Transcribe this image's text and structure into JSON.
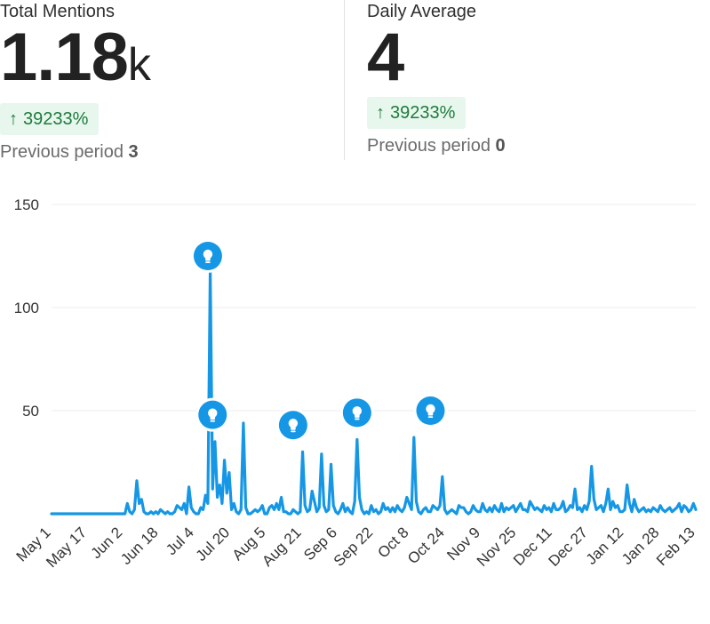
{
  "stats": {
    "total": {
      "label": "Total Mentions",
      "value": "1.18",
      "unit": "k",
      "delta": "39233%",
      "prev_label": "Previous period",
      "prev_value": "3"
    },
    "average": {
      "label": "Daily Average",
      "value": "4",
      "delta": "39233%",
      "prev_label": "Previous period",
      "prev_value": "0"
    }
  },
  "colors": {
    "line": "#1597e5",
    "marker": "#1597e5",
    "delta_bg": "#e8f7ee",
    "delta_text": "#1e7b3a",
    "grid": "#ececec"
  },
  "icons": {
    "delta": "arrow-up-icon",
    "marker": "lightbulb-icon"
  },
  "chart_data": {
    "type": "line",
    "title": "",
    "xlabel": "",
    "ylabel": "",
    "ylim": [
      0,
      150
    ],
    "yticks": [
      50,
      100,
      150
    ],
    "grid": true,
    "x_start": "May 1",
    "x_end": "Feb 13",
    "xtick_labels": [
      "May 1",
      "May 17",
      "Jun 2",
      "Jun 18",
      "Jul 4",
      "Jul 20",
      "Aug 5",
      "Aug 21",
      "Sep 6",
      "Sep 22",
      "Oct 8",
      "Oct 24",
      "Nov 9",
      "Nov 25",
      "Dec 11",
      "Dec 27",
      "Jan 12",
      "Jan 28",
      "Feb 13"
    ],
    "series": [
      {
        "values": [
          0,
          0,
          0,
          0,
          0,
          0,
          0,
          0,
          0,
          0,
          0,
          0,
          0,
          0,
          0,
          0,
          0,
          0,
          0,
          0,
          0,
          0,
          0,
          0,
          0,
          0,
          0,
          0,
          0,
          0,
          0,
          0,
          5,
          1,
          0,
          2,
          16,
          5,
          7,
          1,
          0,
          0,
          1,
          0,
          1,
          0,
          2,
          1,
          0,
          1,
          0,
          0,
          1,
          4,
          3,
          2,
          5,
          0,
          13,
          3,
          1,
          0,
          0,
          3,
          2,
          9,
          5,
          118,
          12,
          35,
          8,
          14,
          5,
          26,
          10,
          20,
          2,
          5,
          1,
          0,
          2,
          44,
          3,
          0,
          0,
          1,
          2,
          1,
          2,
          4,
          0,
          0,
          3,
          4,
          2,
          5,
          2,
          8,
          1,
          1,
          0,
          0,
          2,
          1,
          0,
          1,
          30,
          4,
          1,
          2,
          11,
          6,
          1,
          3,
          29,
          4,
          1,
          2,
          24,
          4,
          1,
          0,
          2,
          5,
          1,
          3,
          1,
          0,
          6,
          36,
          8,
          2,
          0,
          1,
          0,
          4,
          1,
          2,
          0,
          1,
          5,
          2,
          3,
          1,
          3,
          1,
          4,
          2,
          1,
          3,
          8,
          5,
          2,
          37,
          6,
          1,
          0,
          2,
          3,
          1,
          1,
          4,
          3,
          2,
          4,
          18,
          2,
          0,
          1,
          2,
          1,
          0,
          4,
          3,
          3,
          1,
          0,
          1,
          4,
          2,
          1,
          1,
          5,
          2,
          1,
          3,
          1,
          4,
          2,
          1,
          5,
          1,
          3,
          2,
          3,
          4,
          1,
          3,
          5,
          2,
          2,
          1,
          6,
          4,
          2,
          3,
          2,
          1,
          4,
          2,
          3,
          1,
          5,
          2,
          2,
          3,
          6,
          1,
          2,
          4,
          3,
          12,
          2,
          3,
          1,
          4,
          2,
          6,
          23,
          7,
          2,
          3,
          4,
          1,
          5,
          12,
          2,
          6,
          3,
          4,
          1,
          1,
          2,
          14,
          5,
          1,
          7,
          3,
          1,
          2,
          3,
          1,
          2,
          1,
          3,
          2,
          1,
          4,
          2,
          1,
          2,
          3,
          1,
          2,
          3,
          5,
          1,
          4,
          3,
          1,
          2,
          5,
          2
        ]
      }
    ],
    "markers": [
      {
        "x": "Jul 6",
        "y": 125
      },
      {
        "x": "Jul 8",
        "y": 48
      },
      {
        "x": "Aug 11",
        "y": 43
      },
      {
        "x": "Sep 7",
        "y": 49
      },
      {
        "x": "Oct 8",
        "y": 50
      }
    ]
  }
}
